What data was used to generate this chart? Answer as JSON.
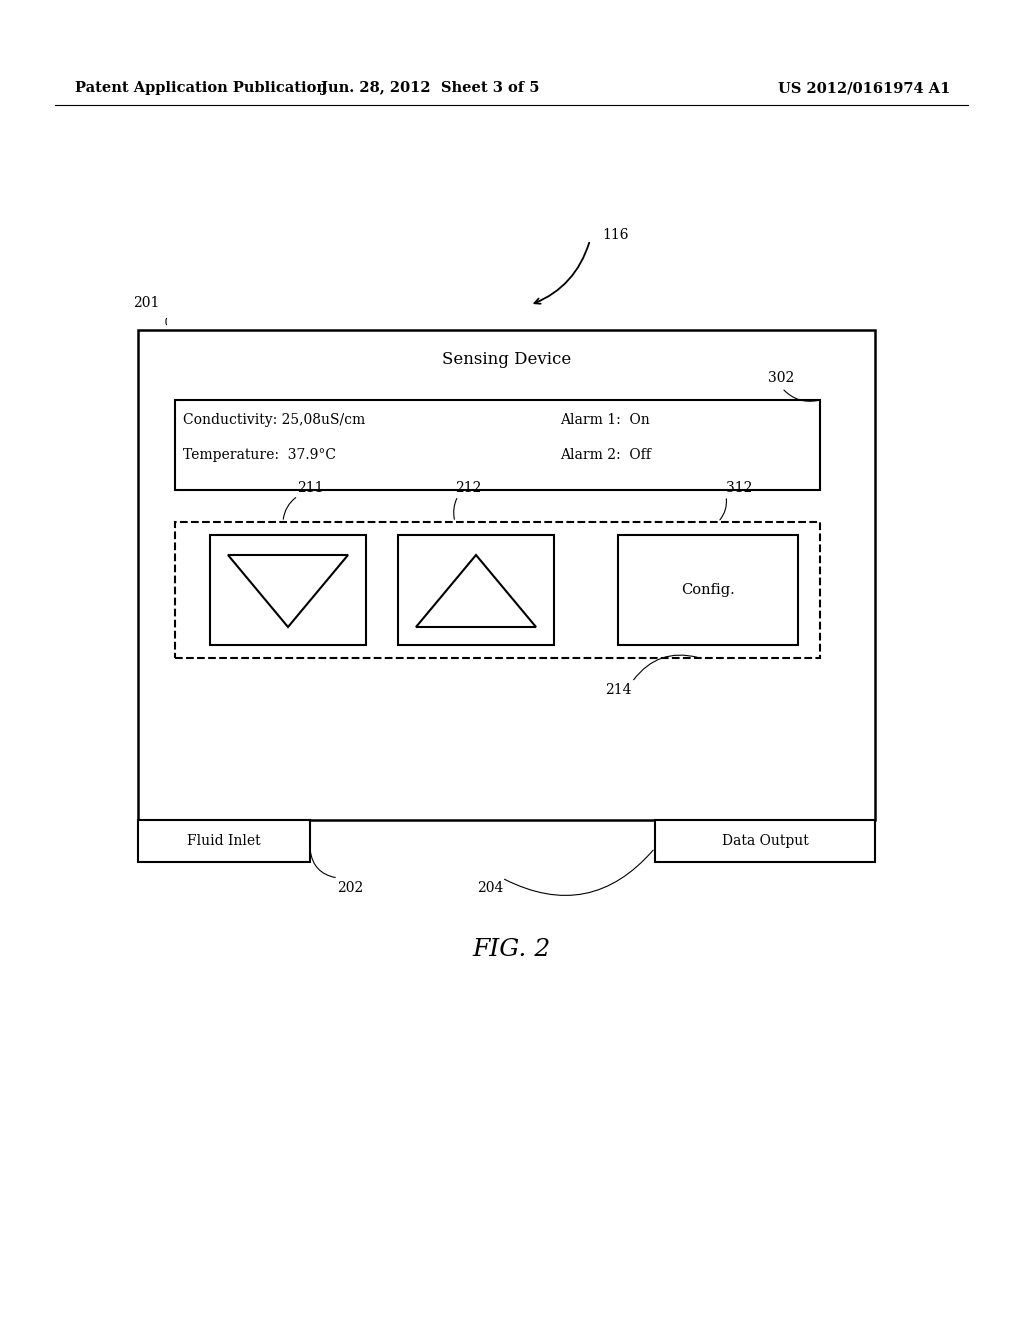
{
  "bg_color": "#ffffff",
  "header_left": "Patent Application Publication",
  "header_mid": "Jun. 28, 2012  Sheet 3 of 5",
  "header_right": "US 2012/0161974 A1",
  "fig_label": "FIG. 2",
  "device_title": "Sensing Device",
  "display_line1_left": "Conductivity: 25,08uS/cm",
  "display_line1_right": "Alarm 1:  On",
  "display_line2_left": "Temperature:  37.9°C",
  "display_line2_right": "Alarm 2:  Off",
  "label_116": "116",
  "label_201": "201",
  "label_302": "302",
  "label_211": "211",
  "label_212": "212",
  "label_312": "312",
  "label_214": "214",
  "label_202": "202",
  "label_204": "204",
  "label_fluid_inlet": "Fluid Inlet",
  "label_data_output": "Data Output"
}
